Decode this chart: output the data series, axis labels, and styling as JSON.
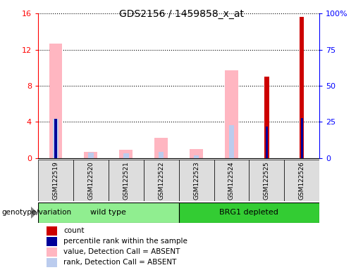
{
  "title": "GDS2156 / 1459858_x_at",
  "samples": [
    "GSM122519",
    "GSM122520",
    "GSM122521",
    "GSM122522",
    "GSM122523",
    "GSM122524",
    "GSM122525",
    "GSM122526"
  ],
  "value_absent": [
    12.7,
    0.7,
    0.9,
    2.2,
    1.0,
    9.7,
    0.0,
    0.0
  ],
  "rank_absent": [
    4.3,
    0.6,
    0.5,
    0.7,
    0.3,
    3.6,
    0.0,
    0.0
  ],
  "count": [
    0,
    0,
    0,
    0,
    0,
    0,
    9.0,
    15.6
  ],
  "percentile_rank": [
    4.3,
    0.0,
    0.0,
    0.0,
    0.0,
    0.0,
    3.5,
    4.4
  ],
  "ylim_left": [
    0,
    16
  ],
  "ylim_right": [
    0,
    100
  ],
  "yticks_left": [
    0,
    4,
    8,
    12,
    16
  ],
  "ytick_labels_left": [
    "0",
    "4",
    "8",
    "12",
    "16"
  ],
  "ytick_labels_right": [
    "0",
    "25",
    "50",
    "75",
    "100%"
  ],
  "color_count": "#CC0000",
  "color_percentile": "#000099",
  "color_value_absent": "#FFB6C1",
  "color_rank_absent": "#BBCCEE",
  "bg_color_sample": "#DDDDDD",
  "bg_color_wt": "#90EE90",
  "bg_color_brg": "#33CC33",
  "wt_label": "wild type",
  "brg_label": "BRG1 depleted",
  "genotype_header": "genotype/variation",
  "legend_items": [
    {
      "color": "#CC0000",
      "label": "count"
    },
    {
      "color": "#000099",
      "label": "percentile rank within the sample"
    },
    {
      "color": "#FFB6C1",
      "label": "value, Detection Call = ABSENT"
    },
    {
      "color": "#BBCCEE",
      "label": "rank, Detection Call = ABSENT"
    }
  ]
}
